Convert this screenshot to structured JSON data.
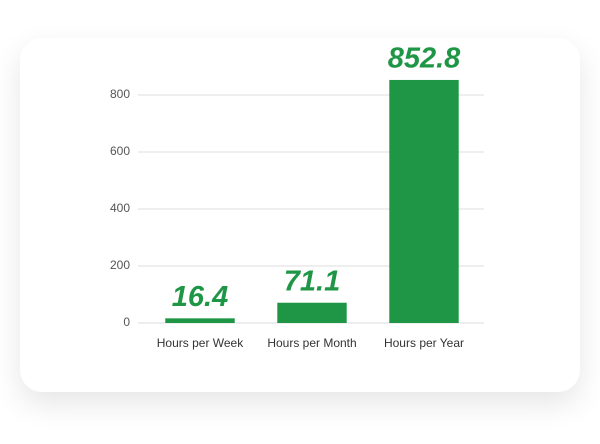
{
  "chart_data": {
    "type": "bar",
    "categories": [
      "Hours per Week",
      "Hours per Month",
      "Hours per Year"
    ],
    "values": [
      16.4,
      71.1,
      852.8
    ],
    "color": "#1f9646",
    "ylim": [
      0,
      900
    ],
    "yticks": [
      0,
      200,
      400,
      600,
      800
    ],
    "grid": true
  }
}
